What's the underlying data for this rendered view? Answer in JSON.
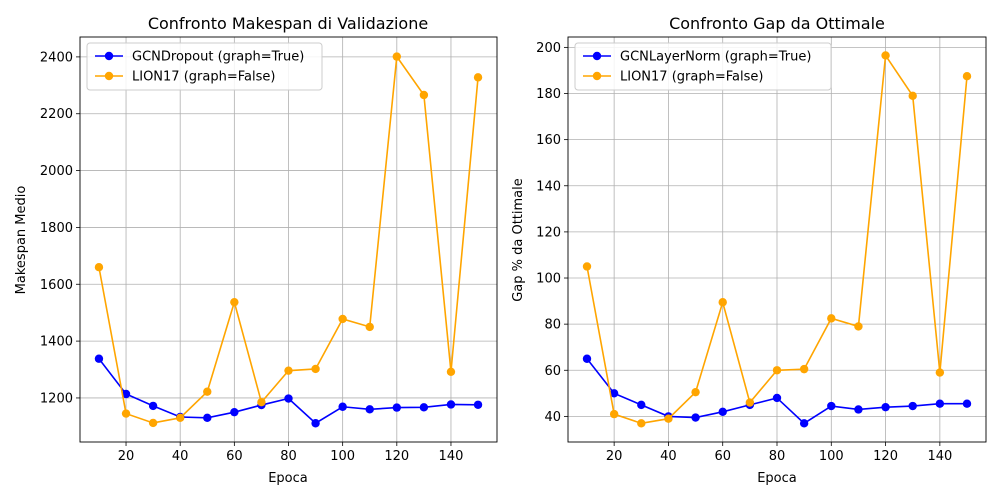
{
  "chart_data": [
    {
      "type": "line",
      "title": "Confronto Makespan di Validazione",
      "xlabel": "Epoca",
      "ylabel": "Makespan Medio",
      "xlim": [
        3,
        157
      ],
      "ylim": [
        1045,
        2470
      ],
      "xticks": [
        20,
        40,
        60,
        80,
        100,
        120,
        140
      ],
      "yticks": [
        1200,
        1400,
        1600,
        1800,
        2000,
        2200,
        2400
      ],
      "grid": true,
      "legend_position": "upper-left",
      "x": [
        10,
        20,
        30,
        40,
        50,
        60,
        70,
        80,
        90,
        100,
        110,
        120,
        130,
        140,
        150
      ],
      "series": [
        {
          "name": "GCNDropout (graph=True)",
          "color": "#0000ff",
          "values": [
            1338,
            1214,
            1172,
            1133,
            1130,
            1150,
            1175,
            1198,
            1111,
            1169,
            1160,
            1166,
            1167,
            1177,
            1176
          ]
        },
        {
          "name": "LION17 (graph=False)",
          "color": "#ffa500",
          "values": [
            1660,
            1145,
            1112,
            1130,
            1222,
            1537,
            1185,
            1296,
            1302,
            1478,
            1450,
            2401,
            2266,
            1292,
            2328
          ]
        }
      ]
    },
    {
      "type": "line",
      "title": "Confronto Gap da Ottimale",
      "xlabel": "Epoca",
      "ylabel": "Gap % da Ottimale",
      "xlim": [
        3,
        157
      ],
      "ylim": [
        28.9,
        204.5
      ],
      "xticks": [
        20,
        40,
        60,
        80,
        100,
        120,
        140
      ],
      "yticks": [
        40,
        60,
        80,
        100,
        120,
        140,
        160,
        180,
        200
      ],
      "grid": true,
      "legend_position": "upper-left",
      "x": [
        10,
        20,
        30,
        40,
        50,
        60,
        70,
        80,
        90,
        100,
        110,
        120,
        130,
        140,
        150
      ],
      "series": [
        {
          "name": "GCNLayerNorm (graph=True)",
          "color": "#0000ff",
          "values": [
            65,
            50,
            45,
            40,
            39.5,
            42,
            45,
            48,
            37,
            44.5,
            43,
            44,
            44.5,
            45.5,
            45.5
          ]
        },
        {
          "name": "LION17 (graph=False)",
          "color": "#ffa500",
          "values": [
            105,
            41,
            37,
            39,
            50.5,
            89.5,
            46,
            60,
            60.5,
            82.5,
            79,
            196.5,
            179,
            59,
            187.5
          ]
        }
      ]
    }
  ]
}
